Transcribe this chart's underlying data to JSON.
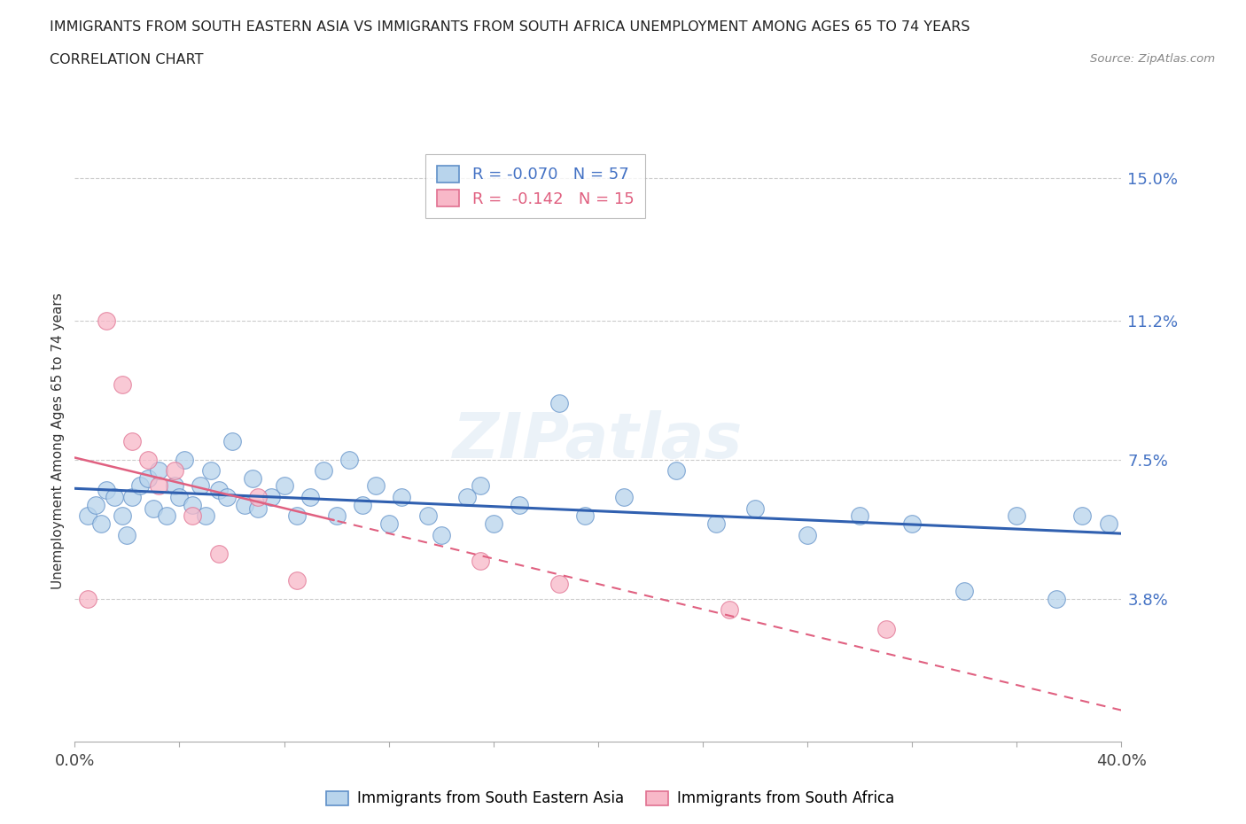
{
  "title_line1": "IMMIGRANTS FROM SOUTH EASTERN ASIA VS IMMIGRANTS FROM SOUTH AFRICA UNEMPLOYMENT AMONG AGES 65 TO 74 YEARS",
  "title_line2": "CORRELATION CHART",
  "source_text": "Source: ZipAtlas.com",
  "ylabel": "Unemployment Among Ages 65 to 74 years",
  "xlim": [
    0.0,
    0.4
  ],
  "ylim": [
    0.0,
    0.16
  ],
  "ytick_vals": [
    0.038,
    0.075,
    0.112,
    0.15
  ],
  "ytick_labels": [
    "3.8%",
    "7.5%",
    "11.2%",
    "15.0%"
  ],
  "xtick_positions": [
    0.0,
    0.04,
    0.08,
    0.12,
    0.16,
    0.2,
    0.24,
    0.28,
    0.32,
    0.36,
    0.4
  ],
  "xtick_labels": [
    "0.0%",
    "",
    "",
    "",
    "",
    "",
    "",
    "",
    "",
    "",
    "40.0%"
  ],
  "legend_r_sea": "R = -0.070   N = 57",
  "legend_r_sa": "R =  -0.142   N = 15",
  "color_sea_fill": "#b8d4ec",
  "color_sea_edge": "#6090c8",
  "color_sa_fill": "#f8b8c8",
  "color_sa_edge": "#e07090",
  "color_sea_line": "#3060b0",
  "color_sa_line": "#e06080",
  "watermark": "ZIPatlas",
  "sea_x": [
    0.005,
    0.008,
    0.01,
    0.012,
    0.015,
    0.018,
    0.02,
    0.022,
    0.025,
    0.028,
    0.03,
    0.032,
    0.035,
    0.038,
    0.04,
    0.042,
    0.045,
    0.048,
    0.05,
    0.052,
    0.055,
    0.058,
    0.06,
    0.065,
    0.068,
    0.07,
    0.075,
    0.08,
    0.085,
    0.09,
    0.095,
    0.1,
    0.105,
    0.11,
    0.115,
    0.12,
    0.125,
    0.135,
    0.14,
    0.15,
    0.155,
    0.16,
    0.17,
    0.185,
    0.195,
    0.21,
    0.23,
    0.245,
    0.26,
    0.28,
    0.3,
    0.32,
    0.34,
    0.36,
    0.375,
    0.385,
    0.395
  ],
  "sea_y": [
    0.06,
    0.063,
    0.058,
    0.067,
    0.065,
    0.06,
    0.055,
    0.065,
    0.068,
    0.07,
    0.062,
    0.072,
    0.06,
    0.068,
    0.065,
    0.075,
    0.063,
    0.068,
    0.06,
    0.072,
    0.067,
    0.065,
    0.08,
    0.063,
    0.07,
    0.062,
    0.065,
    0.068,
    0.06,
    0.065,
    0.072,
    0.06,
    0.075,
    0.063,
    0.068,
    0.058,
    0.065,
    0.06,
    0.055,
    0.065,
    0.068,
    0.058,
    0.063,
    0.09,
    0.06,
    0.065,
    0.072,
    0.058,
    0.062,
    0.055,
    0.06,
    0.058,
    0.04,
    0.06,
    0.038,
    0.06,
    0.058
  ],
  "sa_x": [
    0.005,
    0.012,
    0.018,
    0.022,
    0.028,
    0.032,
    0.038,
    0.045,
    0.055,
    0.07,
    0.085,
    0.155,
    0.185,
    0.25,
    0.31
  ],
  "sa_y": [
    0.038,
    0.112,
    0.095,
    0.08,
    0.075,
    0.068,
    0.072,
    0.06,
    0.05,
    0.065,
    0.043,
    0.048,
    0.042,
    0.035,
    0.03
  ]
}
